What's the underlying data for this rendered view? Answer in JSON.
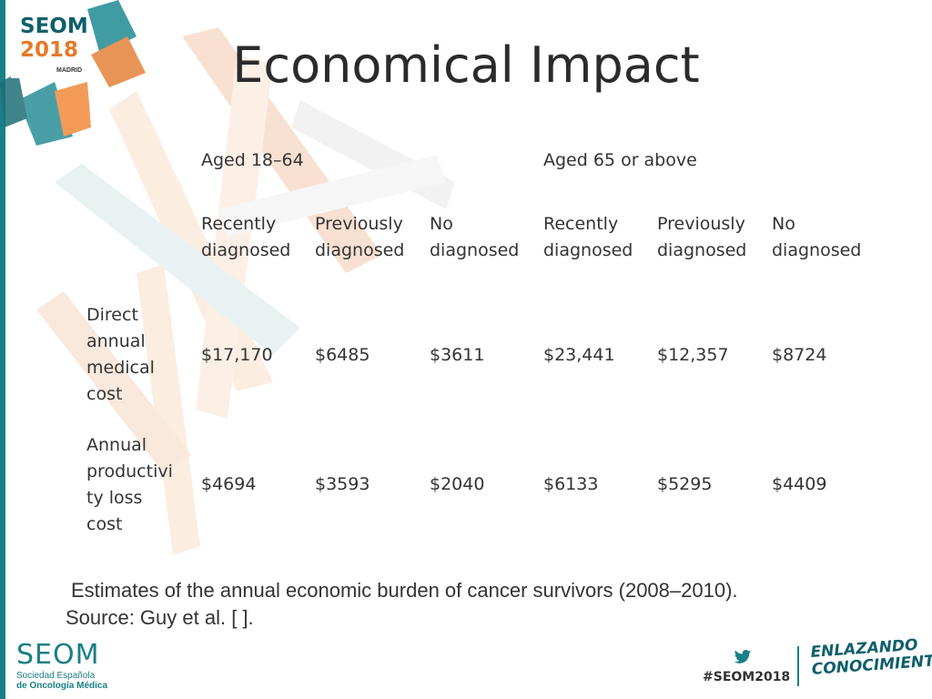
{
  "header": {
    "logo": {
      "name": "SEOM",
      "year": "2018",
      "city": "MADRID"
    },
    "title": "Economical Impact"
  },
  "table": {
    "groups": [
      "Aged 18–64",
      "Aged 65 or above"
    ],
    "subheaders": [
      [
        "Recently",
        "diagnosed"
      ],
      [
        "Previously",
        "diagnosed"
      ],
      [
        "No",
        "diagnosed"
      ],
      [
        "Recently",
        "diagnosed"
      ],
      [
        "Previously",
        "diagnosed"
      ],
      [
        "No",
        "diagnosed"
      ]
    ],
    "rows": [
      {
        "label": [
          "Direct",
          "annual",
          "medical",
          "cost"
        ],
        "values": [
          "$17,170",
          "$6485",
          "$3611",
          "$23,441",
          "$12,357",
          "$8724"
        ]
      },
      {
        "label": [
          "Annual",
          "productivi",
          "ty loss",
          "cost"
        ],
        "values": [
          "$4694",
          "$3593",
          "$2040",
          "$6133",
          "$5295",
          "$4409"
        ]
      }
    ]
  },
  "caption": {
    "line1": "Estimates of the annual economic burden of cancer survivors (2008–2010).",
    "line2": "Source: Guy et al. [    ]."
  },
  "footer": {
    "org": "SEOM",
    "org_sub1": "Sociedad  Española",
    "org_sub2": "de Oncología Médica",
    "hashtag": "#SEOM2018",
    "slogan_line1": "ENLAZANDO",
    "slogan_line2": "CONOCIMIENTO",
    "accent_color": "#1a7f86"
  }
}
